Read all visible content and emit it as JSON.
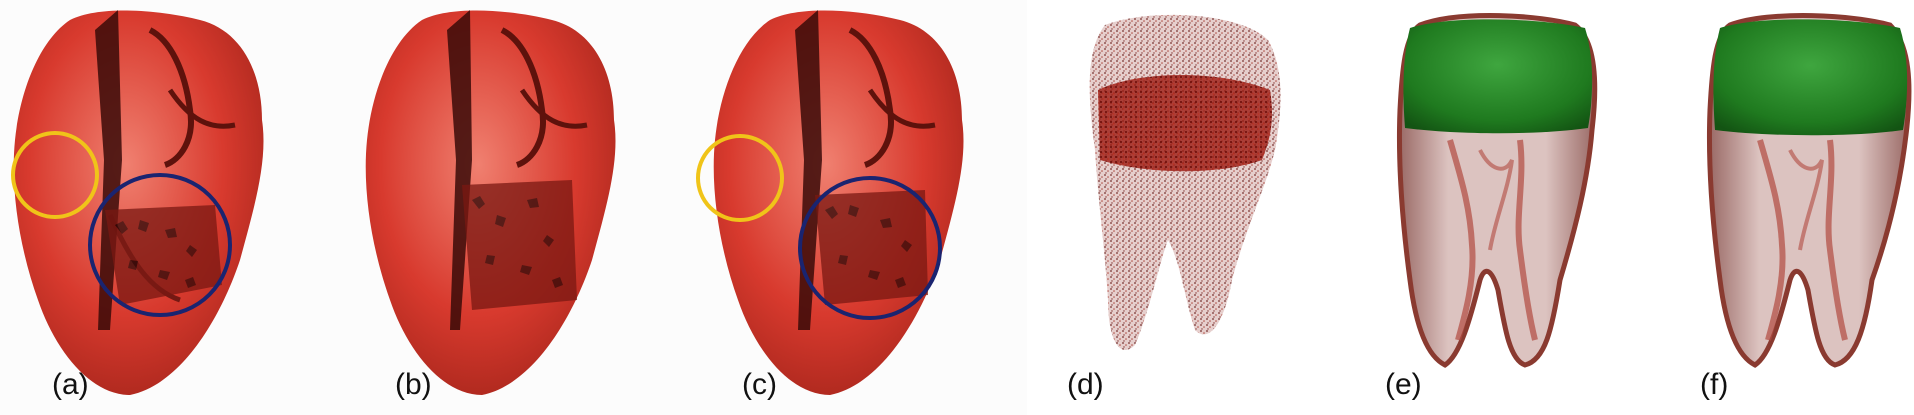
{
  "panels": [
    {
      "id": "a",
      "label": "(a)"
    },
    {
      "id": "b",
      "label": "(b)"
    },
    {
      "id": "c",
      "label": "(c)"
    },
    {
      "id": "d",
      "label": "(d)"
    },
    {
      "id": "e",
      "label": "(e)"
    },
    {
      "id": "f",
      "label": "(f)"
    }
  ],
  "colors": {
    "heart": "#e0463a",
    "heart_dark": "#6b1410",
    "highlight_yellow": "#f0c419",
    "highlight_navy": "#1a2470",
    "tooth_points": "#8a1a12",
    "tooth_body": "#d9b8b4",
    "tooth_crown": "#1f8a1f",
    "tooth_edge": "#8a3a30"
  }
}
